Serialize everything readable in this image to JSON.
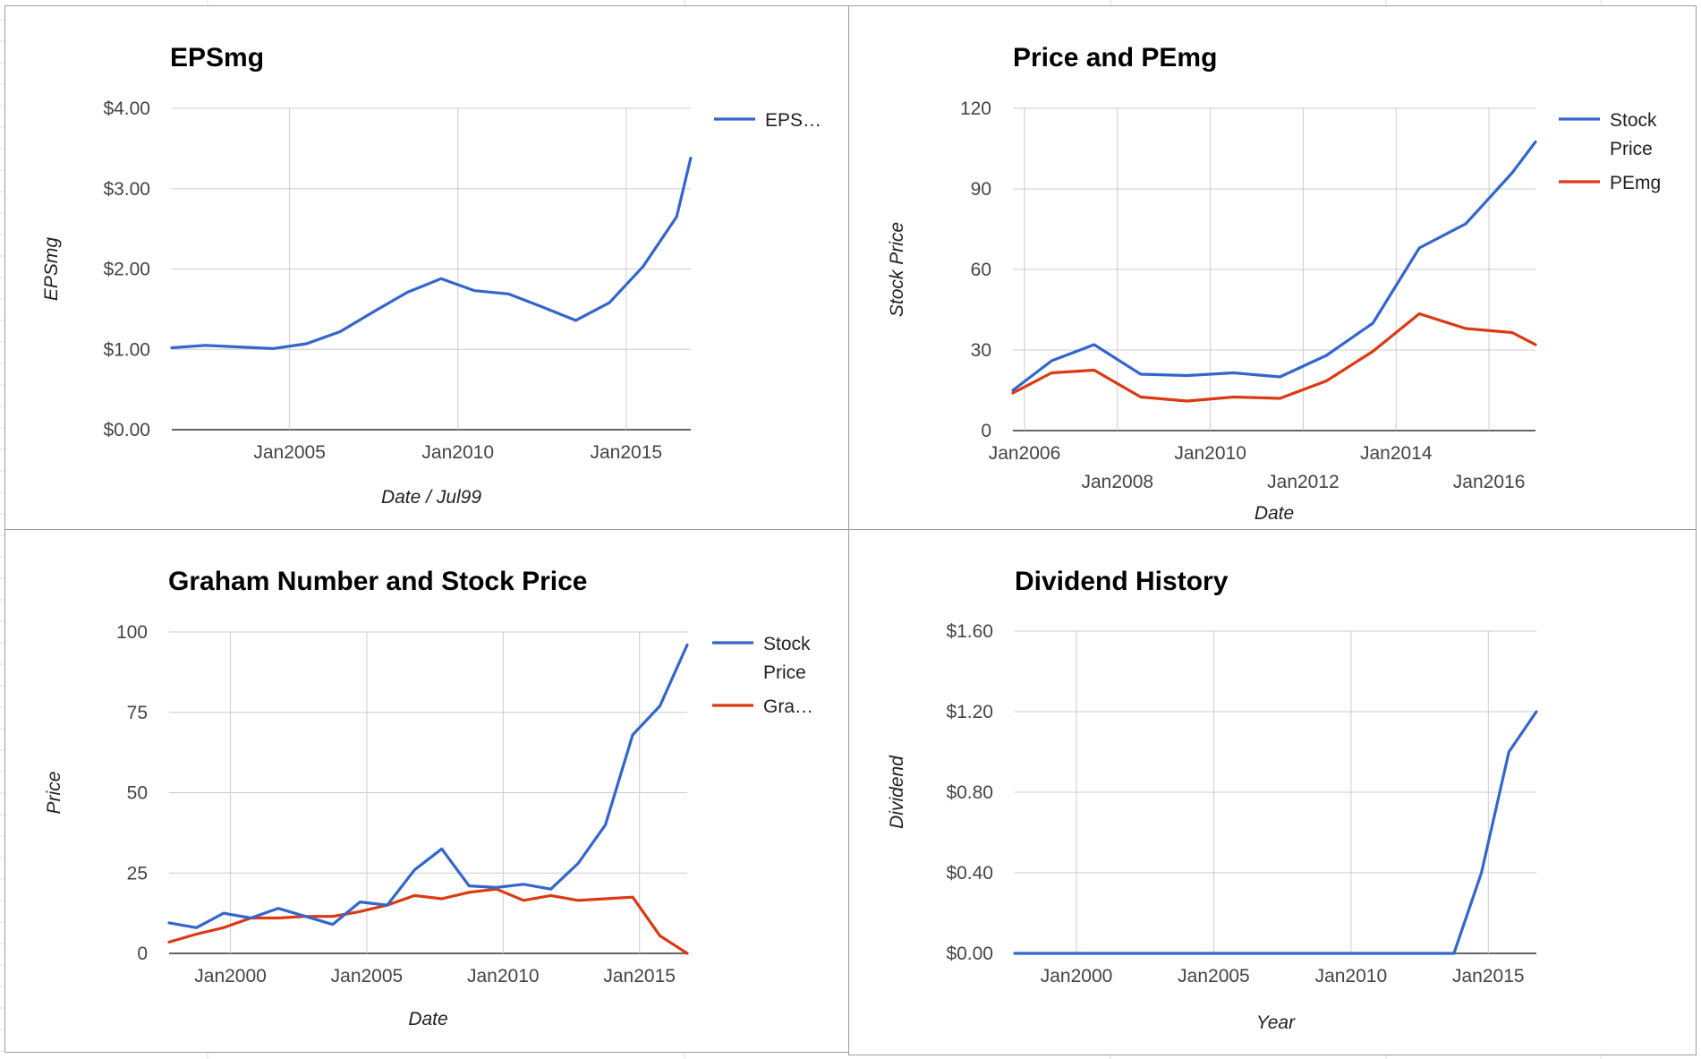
{
  "colors": {
    "blue": "#3366cc",
    "red": "#dc3912",
    "grid": "#cccccc",
    "text": "#444444",
    "title": "#000000"
  },
  "chart_data": [
    {
      "type": "line",
      "title": "EPSmg",
      "xlabel": "Date / Jul99",
      "ylabel": "EPSmg",
      "ylim": [
        0,
        4
      ],
      "yticks": [
        "$0.00",
        "$1.00",
        "$2.00",
        "$3.00",
        "$4.00"
      ],
      "xticks": [
        "Jan2005",
        "Jan2010",
        "Jan2015"
      ],
      "grid": true,
      "legend_position": "right",
      "legend": [
        "EPS…"
      ],
      "series": [
        {
          "name": "EPS…",
          "color": "#3366cc",
          "x": [
            "2001-07",
            "2002-07",
            "2003-07",
            "2004-07",
            "2005-07",
            "2006-07",
            "2007-07",
            "2008-07",
            "2009-07",
            "2010-07",
            "2011-07",
            "2012-07",
            "2013-07",
            "2014-07",
            "2015-07",
            "2016-07",
            "2016-12"
          ],
          "values": [
            1.02,
            1.05,
            1.03,
            1.01,
            1.07,
            1.22,
            1.47,
            1.71,
            1.88,
            1.73,
            1.69,
            1.53,
            1.36,
            1.58,
            2.03,
            2.65,
            3.38
          ]
        }
      ]
    },
    {
      "type": "line",
      "title": "Price and PEmg",
      "xlabel": "Date",
      "ylabel": "Stock Price",
      "ylim": [
        0,
        120
      ],
      "yticks": [
        "0",
        "30",
        "60",
        "90",
        "120"
      ],
      "xticks": [
        "Jan2006",
        "Jan2008",
        "Jan2010",
        "Jan2012",
        "Jan2014",
        "Jan2016"
      ],
      "grid": true,
      "legend_position": "right",
      "legend": [
        [
          "Stock",
          "Price"
        ],
        [
          "PEmg"
        ]
      ],
      "series": [
        {
          "name": "Stock Price",
          "color": "#3366cc",
          "x": [
            "2005-10",
            "2006-08",
            "2007-07",
            "2008-07",
            "2009-07",
            "2010-07",
            "2011-07",
            "2012-07",
            "2013-07",
            "2014-07",
            "2015-07",
            "2016-07",
            "2017-01"
          ],
          "values": [
            15,
            26,
            32,
            21,
            20.5,
            21.5,
            20,
            28,
            40,
            68,
            77,
            96,
            107.5
          ]
        },
        {
          "name": "PEmg",
          "color": "#dc3912",
          "x": [
            "2005-10",
            "2006-08",
            "2007-07",
            "2008-07",
            "2009-07",
            "2010-07",
            "2011-07",
            "2012-07",
            "2013-07",
            "2014-07",
            "2015-07",
            "2016-07",
            "2017-01"
          ],
          "values": [
            14,
            21.5,
            22.5,
            12.5,
            11,
            12.5,
            12,
            18.5,
            29.5,
            43.5,
            38,
            36.5,
            32
          ]
        }
      ]
    },
    {
      "type": "line",
      "title": "Graham Number and Stock Price",
      "xlabel": "Date",
      "ylabel": "Price",
      "ylim": [
        0,
        100
      ],
      "yticks": [
        "0",
        "25",
        "50",
        "75",
        "100"
      ],
      "xticks": [
        "Jan2000",
        "Jan2005",
        "Jan2010",
        "Jan2015"
      ],
      "grid": true,
      "legend_position": "right",
      "legend": [
        [
          "Stock",
          "Price"
        ],
        [
          "Gra…"
        ]
      ],
      "series": [
        {
          "name": "Stock Price",
          "color": "#3366cc",
          "x": [
            "1997-10",
            "1998-10",
            "1999-10",
            "2000-10",
            "2001-10",
            "2002-10",
            "2003-10",
            "2004-10",
            "2005-10",
            "2006-10",
            "2007-10",
            "2008-10",
            "2009-10",
            "2010-10",
            "2011-10",
            "2012-10",
            "2013-10",
            "2014-10",
            "2015-10",
            "2016-10"
          ],
          "values": [
            9.5,
            8,
            12.5,
            11,
            14,
            11.5,
            9,
            16,
            15,
            26,
            32.5,
            21,
            20.5,
            21.5,
            20,
            28,
            40,
            68,
            77,
            96
          ]
        },
        {
          "name": "Gra…",
          "color": "#dc3912",
          "x": [
            "1997-10",
            "1998-10",
            "1999-10",
            "2000-10",
            "2001-10",
            "2002-10",
            "2003-10",
            "2004-10",
            "2005-10",
            "2006-10",
            "2007-10",
            "2008-10",
            "2009-10",
            "2010-10",
            "2011-10",
            "2012-10",
            "2013-10",
            "2014-10",
            "2015-10",
            "2016-10"
          ],
          "values": [
            3.5,
            6,
            8,
            11,
            11,
            11.5,
            11.5,
            13,
            15,
            18,
            17,
            19,
            20,
            16.5,
            18,
            16.5,
            17,
            17.5,
            5.5,
            0
          ]
        }
      ]
    },
    {
      "type": "line",
      "title": "Dividend History",
      "xlabel": "Year",
      "ylabel": "Dividend",
      "ylim": [
        0,
        1.6
      ],
      "yticks": [
        "$0.00",
        "$0.40",
        "$0.80",
        "$1.20",
        "$1.60"
      ],
      "xticks": [
        "Jan2000",
        "Jan2005",
        "Jan2010",
        "Jan2015"
      ],
      "grid": true,
      "legend_position": "none",
      "legend": [],
      "series": [
        {
          "name": "",
          "color": "#3366cc",
          "x": [
            "1997-10",
            "2013-10",
            "2014-10",
            "2015-10",
            "2016-10"
          ],
          "values": [
            0,
            0,
            0.4,
            1.0,
            1.2
          ]
        }
      ]
    }
  ]
}
